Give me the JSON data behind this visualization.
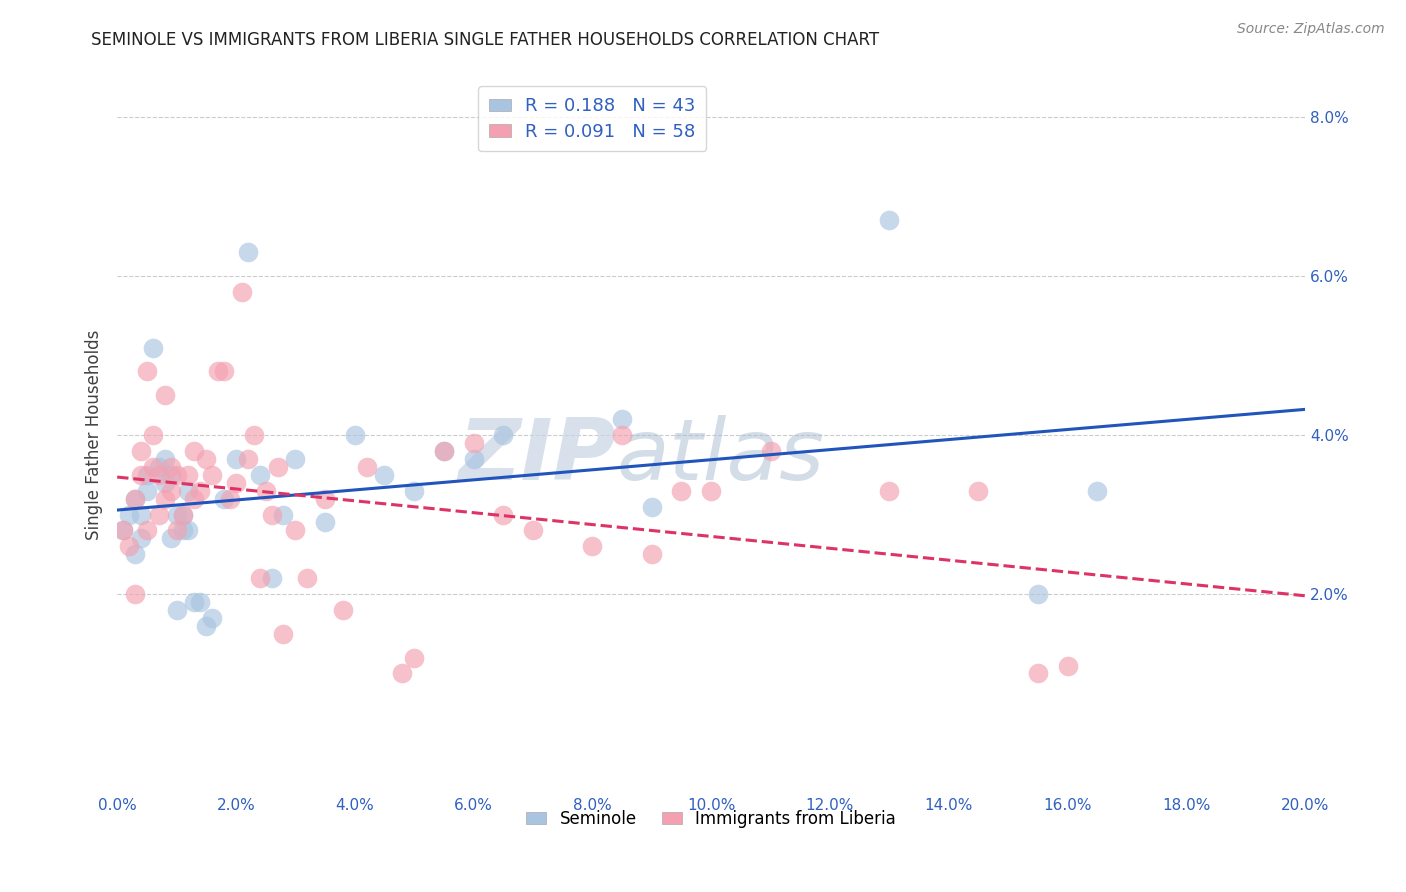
{
  "title": "SEMINOLE VS IMMIGRANTS FROM LIBERIA SINGLE FATHER HOUSEHOLDS CORRELATION CHART",
  "source": "Source: ZipAtlas.com",
  "ylabel": "Single Father Households",
  "xlim": [
    0.0,
    0.2
  ],
  "ylim": [
    -0.005,
    0.085
  ],
  "xticks": [
    0.0,
    0.02,
    0.04,
    0.06,
    0.08,
    0.1,
    0.12,
    0.14,
    0.16,
    0.18,
    0.2
  ],
  "yticks_right": [
    0.02,
    0.04,
    0.06,
    0.08
  ],
  "yticks_grid": [
    0.02,
    0.04,
    0.06,
    0.08
  ],
  "seminole_R": 0.188,
  "seminole_N": 43,
  "liberia_R": 0.091,
  "liberia_N": 58,
  "seminole_color": "#a8c4e0",
  "liberia_color": "#f4a0b0",
  "trendline_seminole_color": "#2255bb",
  "trendline_liberia_color": "#dd3366",
  "watermark_zip": "ZIP",
  "watermark_atlas": "atlas",
  "seminole_x": [
    0.001,
    0.002,
    0.003,
    0.003,
    0.004,
    0.004,
    0.005,
    0.005,
    0.006,
    0.007,
    0.008,
    0.008,
    0.009,
    0.009,
    0.01,
    0.01,
    0.011,
    0.011,
    0.012,
    0.012,
    0.013,
    0.014,
    0.015,
    0.016,
    0.018,
    0.02,
    0.022,
    0.024,
    0.026,
    0.028,
    0.03,
    0.035,
    0.04,
    0.045,
    0.05,
    0.055,
    0.06,
    0.065,
    0.085,
    0.09,
    0.13,
    0.155,
    0.165
  ],
  "seminole_y": [
    0.028,
    0.03,
    0.032,
    0.025,
    0.03,
    0.027,
    0.035,
    0.033,
    0.051,
    0.036,
    0.037,
    0.034,
    0.035,
    0.027,
    0.03,
    0.018,
    0.03,
    0.028,
    0.033,
    0.028,
    0.019,
    0.019,
    0.016,
    0.017,
    0.032,
    0.037,
    0.063,
    0.035,
    0.022,
    0.03,
    0.037,
    0.029,
    0.04,
    0.035,
    0.033,
    0.038,
    0.037,
    0.04,
    0.042,
    0.031,
    0.067,
    0.02,
    0.033
  ],
  "liberia_x": [
    0.001,
    0.002,
    0.003,
    0.003,
    0.004,
    0.004,
    0.005,
    0.005,
    0.006,
    0.006,
    0.007,
    0.007,
    0.008,
    0.008,
    0.009,
    0.009,
    0.01,
    0.01,
    0.011,
    0.012,
    0.013,
    0.013,
    0.014,
    0.015,
    0.016,
    0.017,
    0.018,
    0.019,
    0.02,
    0.021,
    0.022,
    0.023,
    0.024,
    0.025,
    0.026,
    0.027,
    0.028,
    0.03,
    0.032,
    0.035,
    0.038,
    0.042,
    0.048,
    0.05,
    0.055,
    0.06,
    0.065,
    0.07,
    0.08,
    0.085,
    0.09,
    0.095,
    0.1,
    0.11,
    0.13,
    0.145,
    0.155,
    0.16
  ],
  "liberia_y": [
    0.028,
    0.026,
    0.032,
    0.02,
    0.038,
    0.035,
    0.048,
    0.028,
    0.04,
    0.036,
    0.035,
    0.03,
    0.032,
    0.045,
    0.036,
    0.033,
    0.035,
    0.028,
    0.03,
    0.035,
    0.038,
    0.032,
    0.033,
    0.037,
    0.035,
    0.048,
    0.048,
    0.032,
    0.034,
    0.058,
    0.037,
    0.04,
    0.022,
    0.033,
    0.03,
    0.036,
    0.015,
    0.028,
    0.022,
    0.032,
    0.018,
    0.036,
    0.01,
    0.012,
    0.038,
    0.039,
    0.03,
    0.028,
    0.026,
    0.04,
    0.025,
    0.033,
    0.033,
    0.038,
    0.033,
    0.033,
    0.01,
    0.011
  ]
}
